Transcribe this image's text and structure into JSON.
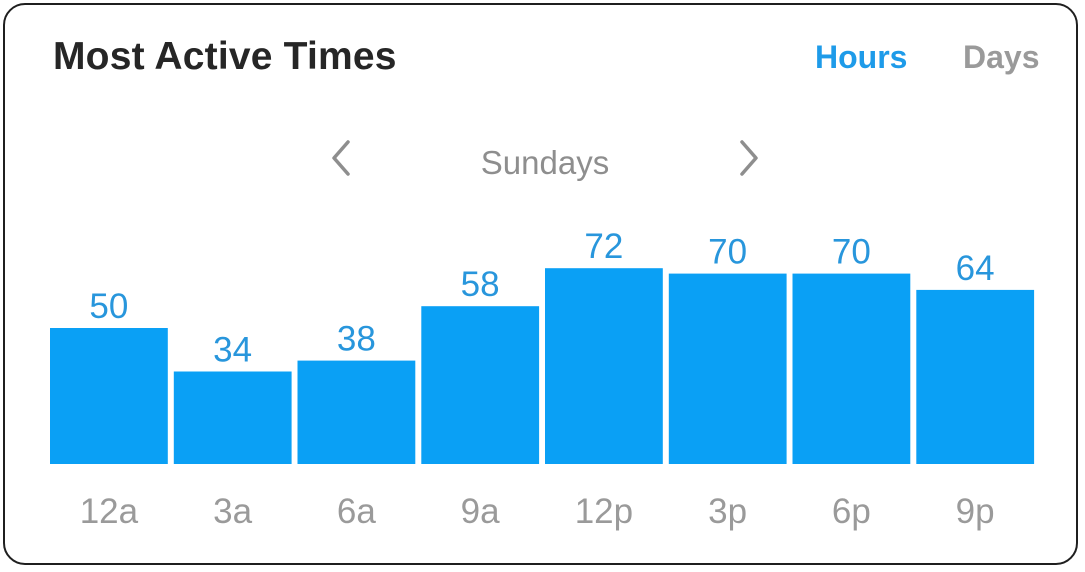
{
  "header": {
    "title": "Most Active Times",
    "toggle_hours": "Hours",
    "toggle_days": "Days"
  },
  "navigator": {
    "period_label": "Sundays",
    "prev_icon": "chevron-left-icon",
    "next_icon": "chevron-right-icon"
  },
  "colors": {
    "bar": "#0aa0f5",
    "value_label": "#2896dc",
    "tick_label": "#9a9a9a",
    "active_toggle": "#1e9be9",
    "inactive_toggle": "#9a9a9a"
  },
  "chart_data": {
    "type": "bar",
    "categories": [
      "12a",
      "3a",
      "6a",
      "9a",
      "12p",
      "3p",
      "6p",
      "9p"
    ],
    "values": [
      50,
      34,
      38,
      58,
      72,
      70,
      70,
      64
    ],
    "data_labels": true,
    "grid": false,
    "legend": "none"
  }
}
